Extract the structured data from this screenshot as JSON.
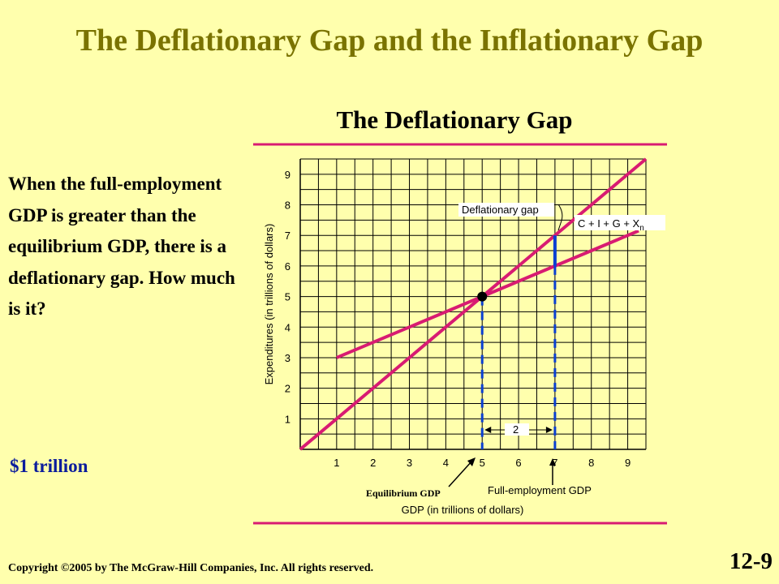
{
  "slide": {
    "title": "The Deflationary Gap and the Inflationary Gap",
    "description": "When the full-employment GDP is greater than the equilibrium GDP, there is a deflationary gap. How much is it?",
    "answer": "$1 trillion",
    "copyright": "Copyright ©2005 by The McGraw-Hill Companies, Inc.  All rights reserved.",
    "slide_number": "12-9"
  },
  "colors": {
    "background": "#FFFFAD",
    "title": "#7A7300",
    "lines": "#D81B72",
    "gap_line": "#0A3FD1",
    "answer": "#0B1C9C",
    "grid": "#000000"
  },
  "chart_data": {
    "type": "line",
    "title": "The Deflationary Gap",
    "xlabel": "GDP  (in trillions of dollars)",
    "ylabel": "Expenditures (in trillions of dollars)",
    "xlim": [
      0,
      9.5
    ],
    "ylim": [
      0,
      9.5
    ],
    "x_ticks": [
      "1",
      "2",
      "3",
      "4",
      "5",
      "6",
      "7",
      "8",
      "9"
    ],
    "y_ticks": [
      "1",
      "2",
      "3",
      "4",
      "5",
      "6",
      "7",
      "8",
      "9"
    ],
    "grid": true,
    "series": [
      {
        "name": "45-degree line",
        "points": [
          [
            0,
            0
          ],
          [
            9.5,
            9.5
          ]
        ]
      },
      {
        "name": "C + I + G + X",
        "name_subscript": "n",
        "points": [
          [
            1,
            3
          ],
          [
            9.3,
            7.15
          ]
        ]
      }
    ],
    "equilibrium_point": [
      5,
      5
    ],
    "full_employment_gdp": 7,
    "deflationary_gap": {
      "x": 7,
      "from": 6,
      "to": 7
    },
    "annotations": {
      "gap_label": "Deflationary gap",
      "distance_label": "2",
      "equilibrium_label": "Equilibrium GDP",
      "full_employment_label": "Full-employment GDP"
    }
  }
}
